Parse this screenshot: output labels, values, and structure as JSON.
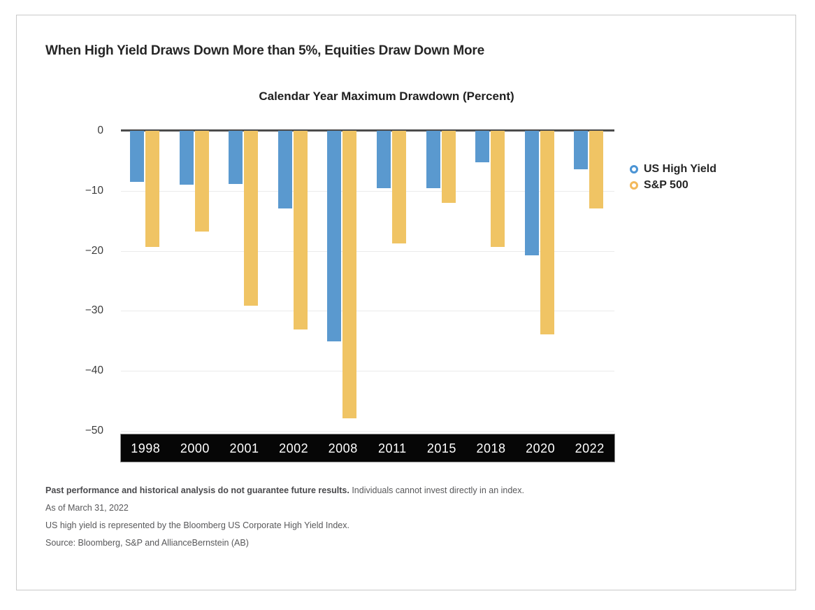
{
  "title": "When High Yield Draws Down More than 5%, Equities Draw Down More",
  "chart_data": {
    "type": "bar",
    "title": "Calendar Year Maximum Drawdown (Percent)",
    "categories": [
      "1998",
      "2000",
      "2001",
      "2002",
      "2008",
      "2011",
      "2015",
      "2018",
      "2020",
      "2022"
    ],
    "series": [
      {
        "name": "US High Yield",
        "color": "#5a99cf",
        "marker_color": "#4b94d4",
        "values": [
          -8.5,
          -9.0,
          -8.9,
          -12.9,
          -35.1,
          -9.5,
          -9.5,
          -5.3,
          -20.8,
          -6.4
        ]
      },
      {
        "name": "S&P 500",
        "color": "#f0c464",
        "marker_color": "#f3b95c",
        "values": [
          -19.3,
          -16.8,
          -29.1,
          -33.1,
          -47.9,
          -18.8,
          -12.0,
          -19.4,
          -33.9,
          -12.9
        ]
      }
    ],
    "ylim": [
      -50,
      0
    ],
    "yticks": [
      0,
      -10,
      -20,
      -30,
      -40,
      -50
    ],
    "ytick_labels": [
      "0",
      "−10",
      "−20",
      "−30",
      "−40",
      "−50"
    ],
    "grid": true,
    "legend_position": "right",
    "x_axis_band_color": "#060606",
    "x_axis_text_color": "#ffffff"
  },
  "footer": {
    "disclaimer_bold": "Past performance and historical analysis do not guarantee future results.",
    "disclaimer_rest": " Individuals cannot invest directly in an index.",
    "as_of": "As of March 31, 2022",
    "definition": "US high yield is represented by the Bloomberg US Corporate High Yield Index.",
    "source": "Source: Bloomberg, S&P and AllianceBernstein (AB)"
  }
}
